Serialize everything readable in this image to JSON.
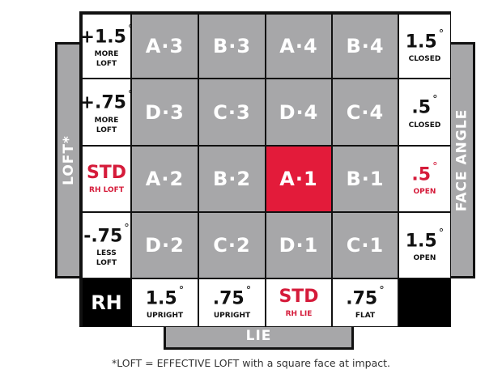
{
  "axes": {
    "loft": "LOFT*",
    "face_angle": "FACE ANGLE",
    "lie": "LIE"
  },
  "loft_labels": [
    {
      "value": "+1.5",
      "unit": "°",
      "caption": "MORE LOFT",
      "red": false
    },
    {
      "value": "+.75",
      "unit": "°",
      "caption": "MORE LOFT",
      "red": false
    },
    {
      "value": "STD",
      "unit": "",
      "caption": "RH LOFT",
      "red": true
    },
    {
      "value": "-.75",
      "unit": "°",
      "caption": "LESS LOFT",
      "red": false
    }
  ],
  "face_labels": [
    {
      "value": "1.5",
      "unit": "°",
      "caption": "CLOSED",
      "red": false
    },
    {
      "value": ".5",
      "unit": "°",
      "caption": "CLOSED",
      "red": false
    },
    {
      "value": ".5",
      "unit": "°",
      "caption": "OPEN",
      "red": true
    },
    {
      "value": "1.5",
      "unit": "°",
      "caption": "OPEN",
      "red": false
    }
  ],
  "lie_labels": [
    {
      "value": "1.5",
      "unit": "°",
      "caption": "UPRIGHT",
      "red": false
    },
    {
      "value": ".75",
      "unit": "°",
      "caption": "UPRIGHT",
      "red": false
    },
    {
      "value": "STD",
      "unit": "",
      "caption": "RH LIE",
      "red": true
    },
    {
      "value": ".75",
      "unit": "°",
      "caption": "FLAT",
      "red": false
    }
  ],
  "corner": "RH",
  "settings": [
    [
      "A·3",
      "B·3",
      "A·4",
      "B·4"
    ],
    [
      "D·3",
      "C·3",
      "D·4",
      "C·4"
    ],
    [
      "A·2",
      "B·2",
      "A·1",
      "B·1"
    ],
    [
      "D·2",
      "C·2",
      "D·1",
      "C·1"
    ]
  ],
  "highlight": "A·1",
  "colors": {
    "highlight": "#e31b3a",
    "setting": "#a7a7a9",
    "accent_text": "#d51b3a"
  },
  "footnote": "*LOFT = EFFECTIVE LOFT with a square face at impact."
}
